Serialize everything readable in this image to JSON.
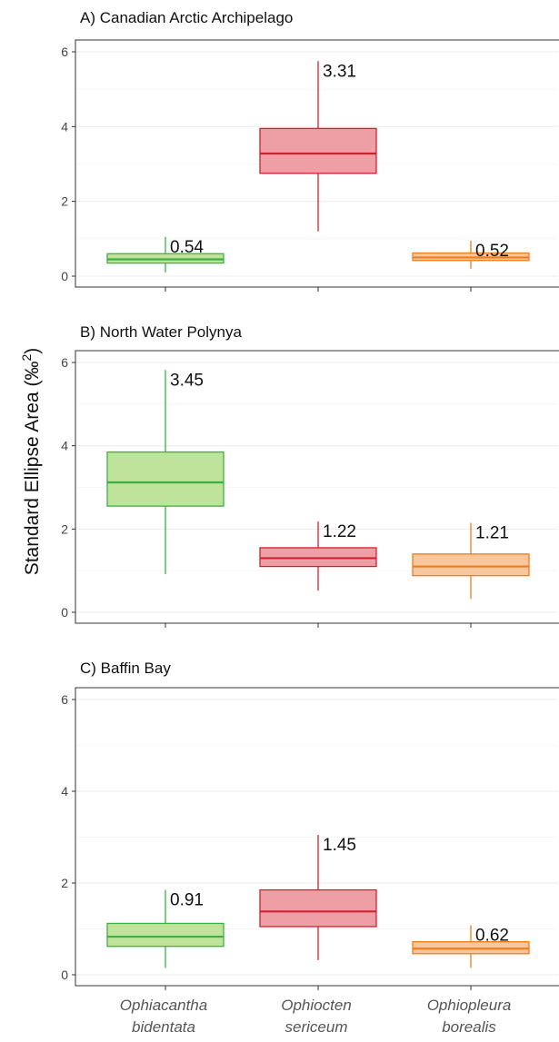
{
  "chart_data": {
    "type": "box",
    "ylabel": "Standard Ellipse Area (‰²)",
    "ylabel_text": "Standard Ellipse Area (‰",
    "ylabel_sup": "2",
    "ylabel_close": ")",
    "ylim": [
      0,
      6.2
    ],
    "yticks": [
      0,
      2,
      4,
      6
    ],
    "categories": [
      [
        "Ophiacantha",
        "bidentata"
      ],
      [
        "Ophiocten",
        "sericeum"
      ],
      [
        "Ophiopleura",
        "borealis"
      ]
    ],
    "colors": {
      "green": {
        "fill": "#bfe39a",
        "stroke": "#3cb043"
      },
      "red": {
        "fill": "#ee9fa6",
        "stroke": "#d32030"
      },
      "orange": {
        "fill": "#f9c79e",
        "stroke": "#ef7d1c"
      }
    },
    "grid": true,
    "panels": [
      {
        "title": "A) Canadian Arctic Archipelago",
        "boxes": [
          {
            "color": "green",
            "min": 0.1,
            "q1": 0.35,
            "median": 0.45,
            "q3": 0.6,
            "max": 1.05,
            "label": "0.54"
          },
          {
            "color": "red",
            "min": 1.2,
            "q1": 2.75,
            "median": 3.28,
            "q3": 3.95,
            "max": 5.75,
            "label": "3.31"
          },
          {
            "color": "orange",
            "min": 0.2,
            "q1": 0.42,
            "median": 0.5,
            "q3": 0.62,
            "max": 0.95,
            "label": "0.52"
          }
        ]
      },
      {
        "title": "B) North Water Polynya",
        "boxes": [
          {
            "color": "green",
            "min": 0.92,
            "q1": 2.55,
            "median": 3.12,
            "q3": 3.85,
            "max": 5.82,
            "label": "3.45"
          },
          {
            "color": "red",
            "min": 0.52,
            "q1": 1.1,
            "median": 1.3,
            "q3": 1.55,
            "max": 2.18,
            "label": "1.22"
          },
          {
            "color": "orange",
            "min": 0.32,
            "q1": 0.88,
            "median": 1.1,
            "q3": 1.4,
            "max": 2.15,
            "label": "1.21"
          }
        ]
      },
      {
        "title": "C) Baffin Bay",
        "boxes": [
          {
            "color": "green",
            "min": 0.15,
            "q1": 0.62,
            "median": 0.83,
            "q3": 1.12,
            "max": 1.85,
            "label": "0.91"
          },
          {
            "color": "red",
            "min": 0.32,
            "q1": 1.05,
            "median": 1.38,
            "q3": 1.85,
            "max": 3.05,
            "label": "1.45"
          },
          {
            "color": "orange",
            "min": 0.15,
            "q1": 0.46,
            "median": 0.57,
            "q3": 0.72,
            "max": 1.08,
            "label": "0.62"
          }
        ]
      }
    ]
  }
}
